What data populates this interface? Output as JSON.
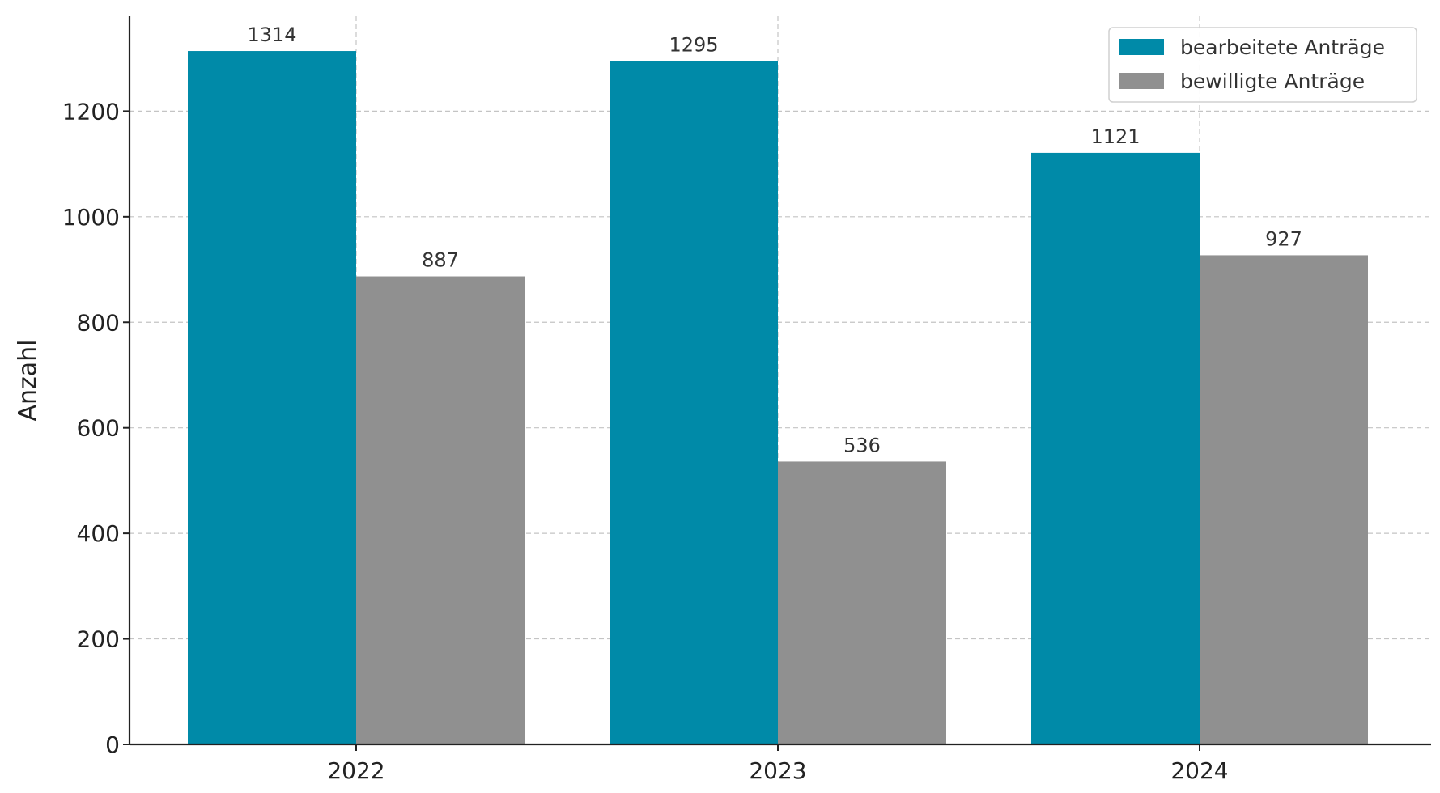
{
  "chart_data": {
    "type": "bar",
    "title": "",
    "xlabel": "",
    "ylabel": "Anzahl",
    "categories": [
      "2022",
      "2023",
      "2024"
    ],
    "series": [
      {
        "name": "bearbeitete Anträge",
        "color": "#008aa8",
        "values": [
          1314,
          1295,
          1121
        ]
      },
      {
        "name": "bewilligte Anträge",
        "color": "#909090",
        "values": [
          887,
          536,
          927
        ]
      }
    ],
    "ylim": [
      0,
      1380
    ],
    "yticks": [
      0,
      200,
      400,
      600,
      800,
      1000,
      1200
    ],
    "grid": true,
    "legend_position": "top-right"
  }
}
